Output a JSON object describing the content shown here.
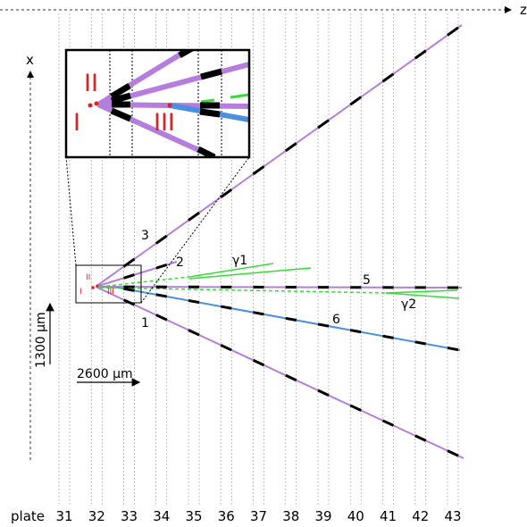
{
  "axes": {
    "z_label": "z",
    "x_label": "x"
  },
  "scale_bars": {
    "vertical": "1300 μm",
    "horizontal": "2600 μm"
  },
  "plate_axis": {
    "label": "plate",
    "plates": [
      "31",
      "32",
      "33",
      "34",
      "35",
      "36",
      "37",
      "38",
      "39",
      "40",
      "41",
      "42",
      "43"
    ]
  },
  "vertices": {
    "primary": "I",
    "secondary": "II",
    "tertiary": "III"
  },
  "tracks": [
    {
      "id": "3",
      "label": "3"
    },
    {
      "id": "2",
      "label": "2"
    },
    {
      "id": "5",
      "label": "5"
    },
    {
      "id": "6",
      "label": "6"
    },
    {
      "id": "1",
      "label": "1"
    }
  ],
  "gammas": [
    {
      "label": "γ1"
    },
    {
      "label": "γ2"
    }
  ],
  "colors": {
    "track": "#b57edc",
    "track_6": "#4a8fe0",
    "gamma": "#33dd33",
    "vertex": "#dd2222",
    "segment": "#000000",
    "plate_line": "#b0b0b0"
  }
}
